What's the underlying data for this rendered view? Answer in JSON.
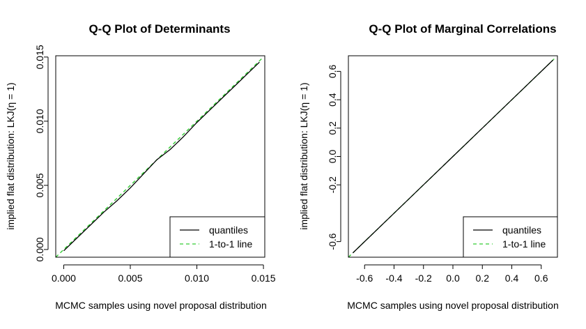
{
  "chart_data": [
    {
      "type": "line",
      "title": "Q-Q Plot of Determinants",
      "xlabel": "MCMC samples using novel proposal distribution",
      "ylabel": "implied flat distribution: LKJ(η = 1)",
      "xlim": [
        -0.0006,
        0.0151
      ],
      "ylim": [
        -0.0006,
        0.0151
      ],
      "xticks": [
        0.0,
        0.005,
        0.01,
        0.015
      ],
      "xtick_labels": [
        "0.000",
        "0.005",
        "0.010",
        "0.015"
      ],
      "yticks": [
        0.0,
        0.005,
        0.01,
        0.015
      ],
      "ytick_labels": [
        "0.000",
        "0.005",
        "0.010",
        "0.015"
      ],
      "grid": false,
      "legend_position": "bottom-right",
      "series": [
        {
          "name": "quantiles",
          "color": "#000000",
          "style": "solid",
          "x": [
            0.0,
            0.001,
            0.002,
            0.003,
            0.004,
            0.005,
            0.006,
            0.007,
            0.0075,
            0.008,
            0.009,
            0.01,
            0.011,
            0.012,
            0.013,
            0.014,
            0.0147
          ],
          "y": [
            -0.0001,
            0.0009,
            0.0019,
            0.0029,
            0.0038,
            0.0048,
            0.0059,
            0.007,
            0.0074,
            0.0078,
            0.0088,
            0.0099,
            0.0109,
            0.0119,
            0.0129,
            0.0139,
            0.0146
          ]
        },
        {
          "name": "1-to-1 line",
          "color": "#33cc33",
          "style": "dashed",
          "x": [
            -0.0006,
            0.015
          ],
          "y": [
            -0.0006,
            0.015
          ]
        }
      ]
    },
    {
      "type": "line",
      "title": "Q-Q Plot of Marginal Correlations",
      "xlabel": "MCMC samples using novel proposal distribution",
      "ylabel": "implied flat distribution: LKJ(η = 1)",
      "xlim": [
        -0.71,
        0.71
      ],
      "ylim": [
        -0.71,
        0.71
      ],
      "xticks": [
        -0.6,
        -0.4,
        -0.2,
        0.0,
        0.2,
        0.4,
        0.6
      ],
      "xtick_labels": [
        "-0.6",
        "-0.4",
        "-0.2",
        "0.0",
        "0.2",
        "0.4",
        "0.6"
      ],
      "yticks": [
        -0.6,
        -0.2,
        0.0,
        0.2,
        0.4,
        0.6
      ],
      "ytick_labels": [
        "-0.6",
        "-0.2",
        "0.0",
        "0.2",
        "0.4",
        "0.6"
      ],
      "grid": false,
      "legend_position": "bottom-right",
      "series": [
        {
          "name": "quantiles",
          "color": "#000000",
          "style": "solid",
          "x": [
            -0.68,
            -0.6,
            -0.4,
            -0.2,
            0.0,
            0.2,
            0.4,
            0.6,
            0.68
          ],
          "y": [
            -0.68,
            -0.6,
            -0.4,
            -0.2,
            0.0,
            0.2,
            0.4,
            0.6,
            0.68
          ]
        },
        {
          "name": "1-to-1 line",
          "color": "#33cc33",
          "style": "dashed",
          "x": [
            -0.71,
            0.7
          ],
          "y": [
            -0.71,
            0.7
          ]
        }
      ]
    }
  ]
}
